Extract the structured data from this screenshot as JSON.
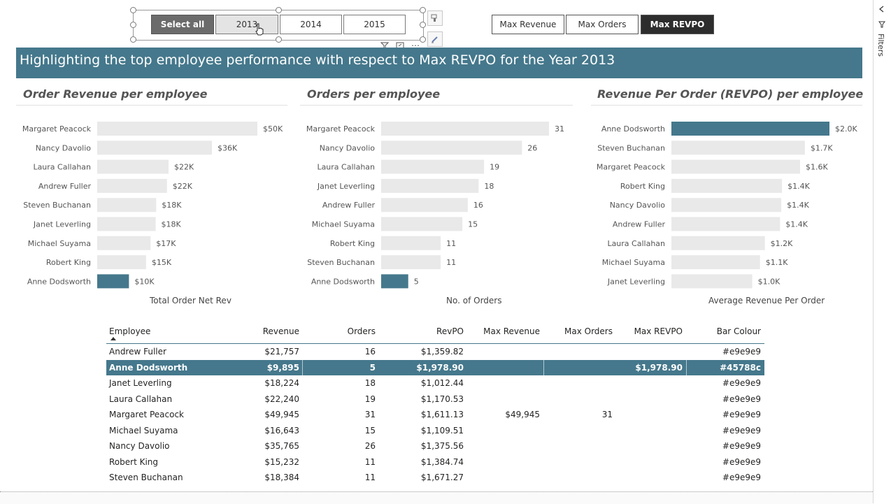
{
  "slicer": {
    "buttons": [
      {
        "label": "Select all",
        "state": "dark"
      },
      {
        "label": "2013",
        "state": "hover"
      },
      {
        "label": "2014",
        "state": "normal"
      },
      {
        "label": "2015",
        "state": "normal"
      }
    ]
  },
  "modes": {
    "buttons": [
      {
        "label": "Max Revenue",
        "active": false
      },
      {
        "label": "Max Orders",
        "active": false
      },
      {
        "label": "Max REVPO",
        "active": true
      }
    ]
  },
  "banner": {
    "title": "Highlighting the top employee performance with respect to Max REVPO for the Year 2013"
  },
  "colors": {
    "highlight": "#45788c",
    "bar_default": "#e9e9e9"
  },
  "charts": [
    {
      "title": "Order Revenue per employee",
      "axis_title": "Total Order Net Rev",
      "categories": [
        "Margaret Peacock",
        "Nancy Davolio",
        "Laura Callahan",
        "Andrew Fuller",
        "Steven Buchanan",
        "Janet Leverling",
        "Michael Suyama",
        "Robert King",
        "Anne Dodsworth"
      ],
      "values": [
        49945,
        35765,
        22240,
        21757,
        18384,
        18224,
        16643,
        15232,
        9895
      ],
      "labels": [
        "$50K",
        "$36K",
        "$22K",
        "$22K",
        "$18K",
        "$18K",
        "$17K",
        "$15K",
        "$10K"
      ],
      "highlight": "Anne Dodsworth"
    },
    {
      "title": "Orders per employee",
      "axis_title": "No. of Orders",
      "categories": [
        "Margaret Peacock",
        "Nancy Davolio",
        "Laura Callahan",
        "Janet Leverling",
        "Andrew Fuller",
        "Michael Suyama",
        "Robert King",
        "Steven Buchanan",
        "Anne Dodsworth"
      ],
      "values": [
        31,
        26,
        19,
        18,
        16,
        15,
        11,
        11,
        5
      ],
      "labels": [
        "31",
        "26",
        "19",
        "18",
        "16",
        "15",
        "11",
        "11",
        "5"
      ],
      "highlight": "Anne Dodsworth"
    },
    {
      "title": "Revenue Per Order (REVPO) per employee",
      "axis_title": "Average Revenue Per Order",
      "categories": [
        "Anne Dodsworth",
        "Steven Buchanan",
        "Margaret Peacock",
        "Robert King",
        "Nancy Davolio",
        "Andrew Fuller",
        "Laura Callahan",
        "Michael Suyama",
        "Janet Leverling"
      ],
      "values": [
        1978.9,
        1671.27,
        1611.13,
        1384.74,
        1375.56,
        1359.82,
        1170.53,
        1109.51,
        1012.44
      ],
      "labels": [
        "$2.0K",
        "$1.7K",
        "$1.6K",
        "$1.4K",
        "$1.4K",
        "$1.4K",
        "$1.2K",
        "$1.1K",
        "$1.0K"
      ],
      "highlight": "Anne Dodsworth"
    }
  ],
  "table": {
    "columns": [
      "Employee",
      "Revenue",
      "Orders",
      "RevPO",
      "Max Revenue",
      "Max Orders",
      "Max REVPO",
      "Bar Colour"
    ],
    "rows": [
      {
        "employee": "Andrew Fuller",
        "revenue": "$21,757",
        "orders": "16",
        "revpo": "$1,359.82",
        "max_revenue": "",
        "max_orders": "",
        "max_revpo": "",
        "bar_colour": "#e9e9e9",
        "selected": false
      },
      {
        "employee": "Anne Dodsworth",
        "revenue": "$9,895",
        "orders": "5",
        "revpo": "$1,978.90",
        "max_revenue": "",
        "max_orders": "",
        "max_revpo": "$1,978.90",
        "bar_colour": "#45788c",
        "selected": true
      },
      {
        "employee": "Janet Leverling",
        "revenue": "$18,224",
        "orders": "18",
        "revpo": "$1,012.44",
        "max_revenue": "",
        "max_orders": "",
        "max_revpo": "",
        "bar_colour": "#e9e9e9",
        "selected": false
      },
      {
        "employee": "Laura Callahan",
        "revenue": "$22,240",
        "orders": "19",
        "revpo": "$1,170.53",
        "max_revenue": "",
        "max_orders": "",
        "max_revpo": "",
        "bar_colour": "#e9e9e9",
        "selected": false
      },
      {
        "employee": "Margaret Peacock",
        "revenue": "$49,945",
        "orders": "31",
        "revpo": "$1,611.13",
        "max_revenue": "$49,945",
        "max_orders": "31",
        "max_revpo": "",
        "bar_colour": "#e9e9e9",
        "selected": false
      },
      {
        "employee": "Michael Suyama",
        "revenue": "$16,643",
        "orders": "15",
        "revpo": "$1,109.51",
        "max_revenue": "",
        "max_orders": "",
        "max_revpo": "",
        "bar_colour": "#e9e9e9",
        "selected": false
      },
      {
        "employee": "Nancy Davolio",
        "revenue": "$35,765",
        "orders": "26",
        "revpo": "$1,375.56",
        "max_revenue": "",
        "max_orders": "",
        "max_revpo": "",
        "bar_colour": "#e9e9e9",
        "selected": false
      },
      {
        "employee": "Robert King",
        "revenue": "$15,232",
        "orders": "11",
        "revpo": "$1,384.74",
        "max_revenue": "",
        "max_orders": "",
        "max_revpo": "",
        "bar_colour": "#e9e9e9",
        "selected": false
      },
      {
        "employee": "Steven Buchanan",
        "revenue": "$18,384",
        "orders": "11",
        "revpo": "$1,671.27",
        "max_revenue": "",
        "max_orders": "",
        "max_revpo": "",
        "bar_colour": "#e9e9e9",
        "selected": false
      }
    ]
  },
  "filters_pane": {
    "label": "Filters"
  },
  "chart_data": [
    {
      "type": "bar",
      "title": "Order Revenue per employee",
      "xlabel": "Total Order Net Rev",
      "categories": [
        "Margaret Peacock",
        "Nancy Davolio",
        "Laura Callahan",
        "Andrew Fuller",
        "Steven Buchanan",
        "Janet Leverling",
        "Michael Suyama",
        "Robert King",
        "Anne Dodsworth"
      ],
      "values": [
        49945,
        35765,
        22240,
        21757,
        18384,
        18224,
        16643,
        15232,
        9895
      ]
    },
    {
      "type": "bar",
      "title": "Orders per employee",
      "xlabel": "No. of Orders",
      "categories": [
        "Margaret Peacock",
        "Nancy Davolio",
        "Laura Callahan",
        "Janet Leverling",
        "Andrew Fuller",
        "Michael Suyama",
        "Robert King",
        "Steven Buchanan",
        "Anne Dodsworth"
      ],
      "values": [
        31,
        26,
        19,
        18,
        16,
        15,
        11,
        11,
        5
      ]
    },
    {
      "type": "bar",
      "title": "Revenue Per Order (REVPO) per employee",
      "xlabel": "Average Revenue Per Order",
      "categories": [
        "Anne Dodsworth",
        "Steven Buchanan",
        "Margaret Peacock",
        "Robert King",
        "Nancy Davolio",
        "Andrew Fuller",
        "Laura Callahan",
        "Michael Suyama",
        "Janet Leverling"
      ],
      "values": [
        1978.9,
        1671.27,
        1611.13,
        1384.74,
        1375.56,
        1359.82,
        1170.53,
        1109.51,
        1012.44
      ]
    }
  ]
}
